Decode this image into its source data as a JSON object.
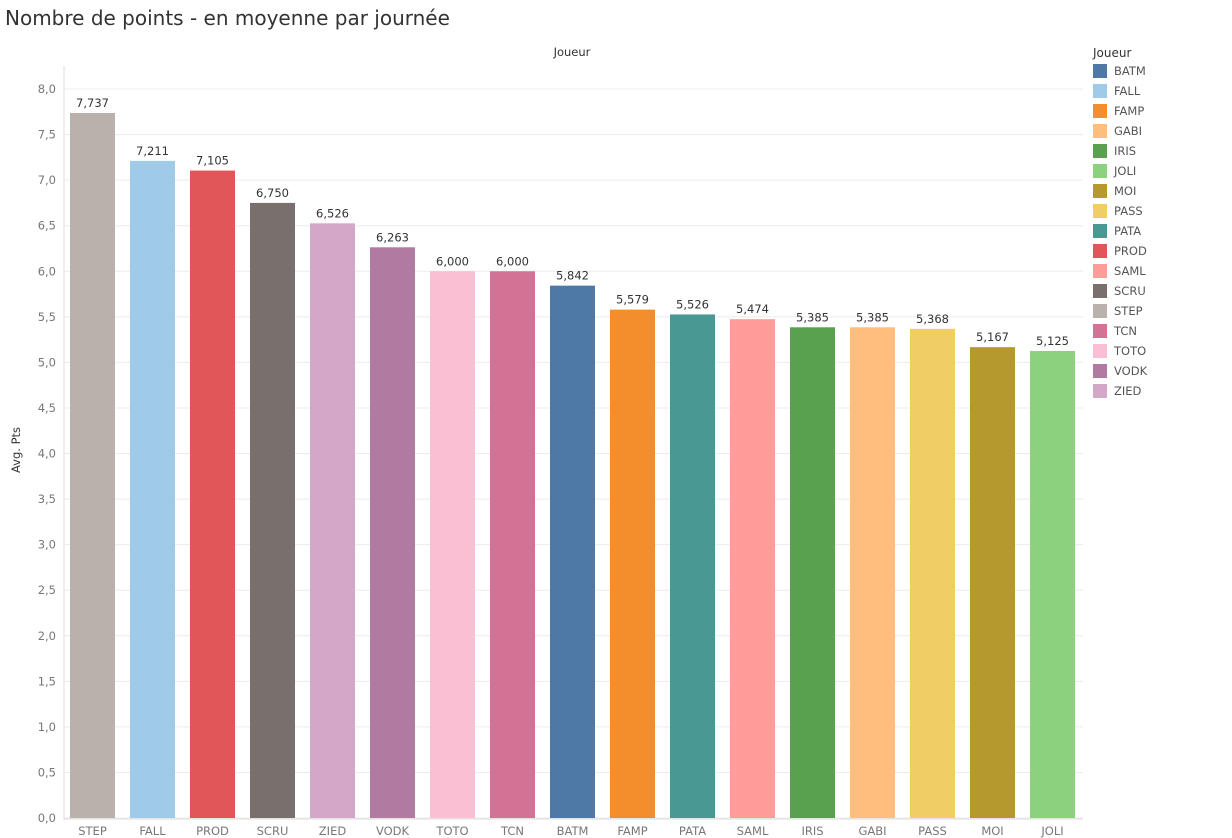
{
  "chart_data": {
    "type": "bar",
    "title": "Nombre de points - en moyenne par journée",
    "column_header": "Joueur",
    "ylabel": "Avg. Pts",
    "ylim": [
      0,
      8.0
    ],
    "yticks": [
      "0,0",
      "0,5",
      "1,0",
      "1,5",
      "2,0",
      "2,5",
      "3,0",
      "3,5",
      "4,0",
      "4,5",
      "5,0",
      "5,5",
      "6,0",
      "6,5",
      "7,0",
      "7,5",
      "8,0"
    ],
    "categories": [
      "STEP",
      "FALL",
      "PROD",
      "SCRU",
      "ZIED",
      "VODK",
      "TOTO",
      "TCN",
      "BATM",
      "FAMP",
      "PATA",
      "SAML",
      "IRIS",
      "GABI",
      "PASS",
      "MOI",
      "JOLI"
    ],
    "values": [
      7.737,
      7.211,
      7.105,
      6.75,
      6.526,
      6.263,
      6.0,
      6.0,
      5.842,
      5.579,
      5.526,
      5.474,
      5.385,
      5.385,
      5.368,
      5.167,
      5.125
    ],
    "value_labels": [
      "7,737",
      "7,211",
      "7,105",
      "6,750",
      "6,526",
      "6,263",
      "6,000",
      "6,000",
      "5,842",
      "5,579",
      "5,526",
      "5,474",
      "5,385",
      "5,385",
      "5,368",
      "5,167",
      "5,125"
    ],
    "colors": {
      "BATM": "#4e79a7",
      "FALL": "#a0cbe8",
      "FAMP": "#f28e2b",
      "GABI": "#ffbe7d",
      "IRIS": "#59a14f",
      "JOLI": "#8cd17d",
      "MOI": "#b6992d",
      "PASS": "#f1ce63",
      "PATA": "#499894",
      "PROD": "#e15759",
      "SAML": "#ff9d9a",
      "SCRU": "#79706e",
      "STEP": "#bab0ac",
      "TCN": "#d37295",
      "TOTO": "#fabfd2",
      "VODK": "#b07aa1",
      "ZIED": "#d4a6c8"
    },
    "legend": {
      "title": "Joueur",
      "items": [
        "BATM",
        "FALL",
        "FAMP",
        "GABI",
        "IRIS",
        "JOLI",
        "MOI",
        "PASS",
        "PATA",
        "PROD",
        "SAML",
        "SCRU",
        "STEP",
        "TCN",
        "TOTO",
        "VODK",
        "ZIED"
      ]
    }
  }
}
